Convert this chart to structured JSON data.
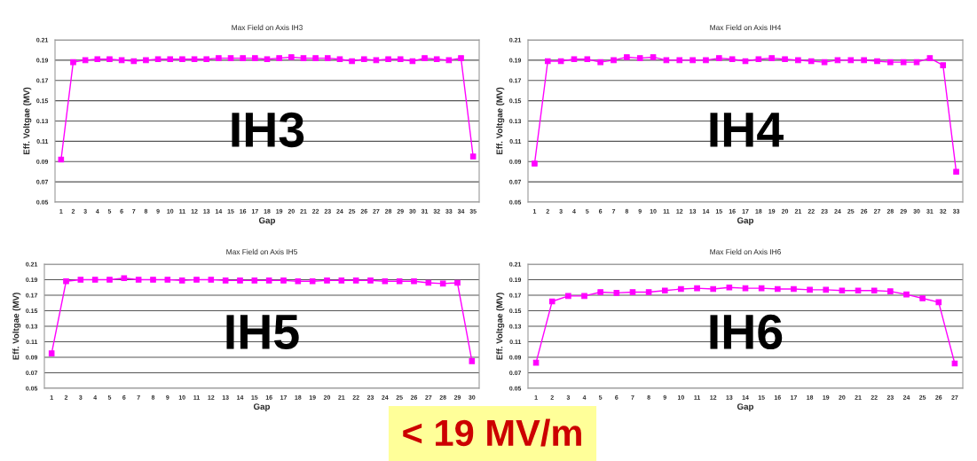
{
  "chart_data": [
    {
      "type": "line",
      "title": "Max Field on Axis IH3",
      "xlabel": "Gap",
      "ylabel": "Eff. Voltgae (MV)",
      "categories": [
        "1",
        "2",
        "3",
        "4",
        "5",
        "6",
        "7",
        "8",
        "9",
        "10",
        "11",
        "12",
        "13",
        "14",
        "15",
        "16",
        "17",
        "18",
        "19",
        "20",
        "21",
        "22",
        "23",
        "24",
        "25",
        "26",
        "27",
        "28",
        "29",
        "30",
        "31",
        "32",
        "33",
        "34",
        "35"
      ],
      "series": [
        {
          "color": "#ff00ff",
          "values": [
            0.092,
            0.188,
            0.19,
            0.191,
            0.191,
            0.19,
            0.189,
            0.19,
            0.191,
            0.191,
            0.191,
            0.191,
            0.191,
            0.192,
            0.192,
            0.192,
            0.192,
            0.191,
            0.192,
            0.193,
            0.192,
            0.192,
            0.192,
            0.191,
            0.189,
            0.191,
            0.19,
            0.191,
            0.191,
            0.189,
            0.192,
            0.191,
            0.19,
            0.192,
            0.095
          ]
        }
      ],
      "ylim": [
        0.05,
        0.21
      ],
      "yticks": [
        0.05,
        0.07,
        0.09,
        0.11,
        0.13,
        0.15,
        0.17,
        0.19,
        0.21
      ],
      "grid": "y",
      "marker": "square",
      "annotations": [
        "IH3"
      ]
    },
    {
      "type": "line",
      "title": "Max Field on Axis IH4",
      "xlabel": "Gap",
      "ylabel": "Eff. Voltgae (MV)",
      "categories": [
        "1",
        "2",
        "3",
        "4",
        "5",
        "6",
        "7",
        "8",
        "9",
        "10",
        "11",
        "12",
        "13",
        "14",
        "15",
        "16",
        "17",
        "18",
        "19",
        "20",
        "21",
        "22",
        "23",
        "24",
        "25",
        "26",
        "27",
        "28",
        "29",
        "30",
        "31",
        "32",
        "33"
      ],
      "series": [
        {
          "color": "#ff00ff",
          "values": [
            0.088,
            0.189,
            0.189,
            0.191,
            0.191,
            0.188,
            0.19,
            0.193,
            0.192,
            0.193,
            0.19,
            0.19,
            0.19,
            0.19,
            0.192,
            0.191,
            0.189,
            0.191,
            0.192,
            0.191,
            0.19,
            0.189,
            0.188,
            0.19,
            0.19,
            0.19,
            0.189,
            0.188,
            0.188,
            0.188,
            0.192,
            0.185,
            0.08
          ]
        }
      ],
      "ylim": [
        0.05,
        0.21
      ],
      "yticks": [
        0.05,
        0.07,
        0.09,
        0.11,
        0.13,
        0.15,
        0.17,
        0.19,
        0.21
      ],
      "grid": "y",
      "marker": "square",
      "annotations": [
        "IH4"
      ]
    },
    {
      "type": "line",
      "title": "Max Field on Axis IH5",
      "xlabel": "Gap",
      "ylabel": "Eff. Voltgae (MV)",
      "categories": [
        "1",
        "2",
        "3",
        "4",
        "5",
        "6",
        "7",
        "8",
        "9",
        "10",
        "11",
        "12",
        "13",
        "14",
        "15",
        "16",
        "17",
        "18",
        "19",
        "20",
        "21",
        "22",
        "23",
        "24",
        "25",
        "26",
        "27",
        "28",
        "29",
        "30"
      ],
      "series": [
        {
          "color": "#ff00ff",
          "values": [
            0.095,
            0.188,
            0.19,
            0.19,
            0.19,
            0.192,
            0.19,
            0.19,
            0.19,
            0.189,
            0.19,
            0.19,
            0.189,
            0.189,
            0.189,
            0.189,
            0.189,
            0.188,
            0.188,
            0.189,
            0.189,
            0.189,
            0.189,
            0.188,
            0.188,
            0.188,
            0.186,
            0.185,
            0.186,
            0.085
          ]
        }
      ],
      "ylim": [
        0.05,
        0.21
      ],
      "yticks": [
        0.05,
        0.07,
        0.09,
        0.11,
        0.13,
        0.15,
        0.17,
        0.19,
        0.21
      ],
      "grid": "y",
      "marker": "square",
      "annotations": [
        "IH5"
      ]
    },
    {
      "type": "line",
      "title": "Max Field on Axis IH6",
      "xlabel": "Gap",
      "ylabel": "Eff. Voltgae (MV)",
      "categories": [
        "1",
        "2",
        "3",
        "4",
        "5",
        "6",
        "7",
        "8",
        "9",
        "10",
        "11",
        "12",
        "13",
        "14",
        "15",
        "16",
        "17",
        "18",
        "19",
        "20",
        "21",
        "22",
        "23",
        "24",
        "25",
        "26",
        "27"
      ],
      "series": [
        {
          "color": "#ff00ff",
          "values": [
            0.083,
            0.162,
            0.169,
            0.169,
            0.174,
            0.173,
            0.174,
            0.174,
            0.176,
            0.178,
            0.179,
            0.178,
            0.18,
            0.179,
            0.179,
            0.178,
            0.178,
            0.177,
            0.177,
            0.176,
            0.176,
            0.176,
            0.175,
            0.171,
            0.166,
            0.161,
            0.082
          ]
        }
      ],
      "ylim": [
        0.05,
        0.21
      ],
      "yticks": [
        0.05,
        0.07,
        0.09,
        0.11,
        0.13,
        0.15,
        0.17,
        0.19,
        0.21
      ],
      "grid": "y",
      "marker": "square",
      "annotations": [
        "IH6",
        "< 19 MV/m"
      ]
    }
  ]
}
